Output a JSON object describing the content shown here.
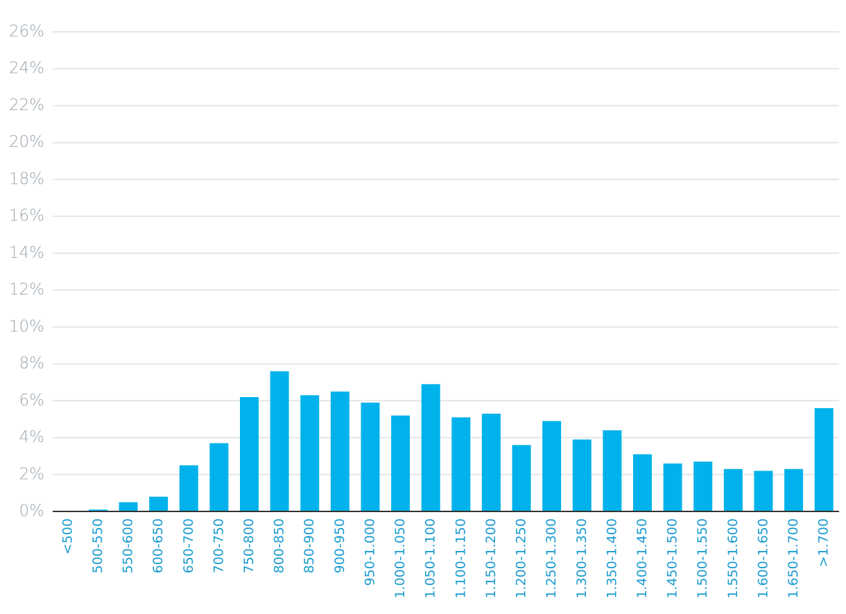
{
  "chart_data": {
    "type": "bar",
    "categories": [
      "<500",
      "500-550",
      "550-600",
      "600-650",
      "650-700",
      "700-750",
      "750-800",
      "800-850",
      "850-900",
      "900-950",
      "950-1.000",
      "1.000-1.050",
      "1.050-1.100",
      "1.100-1.150",
      "1.150-1.200",
      "1.200-1.250",
      "1.250-1.300",
      "1.300-1.350",
      "1.350-1.400",
      "1.400-1.450",
      "1.450-1.500",
      "1.500-1.550",
      "1.550-1.600",
      "1.600-1.650",
      "1.650-1.700",
      ">1.700"
    ],
    "values": [
      0,
      0.1,
      0.5,
      0.8,
      2.5,
      3.7,
      6.2,
      7.6,
      6.3,
      6.5,
      5.9,
      5.2,
      6.9,
      5.1,
      5.3,
      3.6,
      4.9,
      3.9,
      4.4,
      3.1,
      2.6,
      2.7,
      2.3,
      2.2,
      2.3,
      5.6
    ],
    "color": "#00b2eb",
    "ylim": [
      0,
      26
    ],
    "yticks": [
      {
        "value": 0,
        "label": "0%"
      },
      {
        "value": 2,
        "label": "2%"
      },
      {
        "value": 4,
        "label": "4%"
      },
      {
        "value": 6,
        "label": "6%"
      },
      {
        "value": 8,
        "label": "8%"
      },
      {
        "value": 10,
        "label": "10%"
      },
      {
        "value": 12,
        "label": "12%"
      },
      {
        "value": 14,
        "label": "14%"
      },
      {
        "value": 16,
        "label": "16%"
      },
      {
        "value": 18,
        "label": "18%"
      },
      {
        "value": 20,
        "label": "20%"
      },
      {
        "value": 22,
        "label": "22%"
      },
      {
        "value": 24,
        "label": "24%"
      },
      {
        "value": 26,
        "label": "26%"
      }
    ],
    "grid": true
  }
}
